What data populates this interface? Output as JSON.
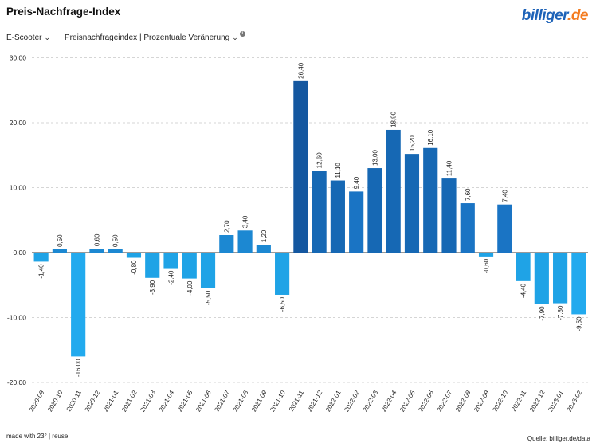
{
  "header": {
    "title": "Preis-Nachfrage-Index",
    "logo_main": "billiger",
    "logo_dot": ".",
    "logo_tld": "de"
  },
  "controls": {
    "product": "E-Scooter",
    "metric": "Preisnachfrageindex | Prozentuale Veränerung",
    "info_glyph": "i"
  },
  "footer": {
    "made_with": "made with 23° | reuse",
    "source": "Quelle: billiger.de/data"
  },
  "colors": {
    "bar_dark": "#1457a0",
    "bar_mid": "#1a74c4",
    "bar_light": "#1fa3e6",
    "bar_lightest": "#22aaee",
    "logo_blue": "#1e63b8",
    "logo_orange": "#f47c20"
  },
  "chart_data": {
    "type": "bar",
    "categories": [
      "2020-09",
      "2020-10",
      "2020-11",
      "2020-12",
      "2021-01",
      "2021-02",
      "2021-03",
      "2021-04",
      "2021-05",
      "2021-06",
      "2021-07",
      "2021-08",
      "2021-09",
      "2021-10",
      "2021-11",
      "2021-12",
      "2022-01",
      "2022-02",
      "2022-03",
      "2022-04",
      "2022-05",
      "2022-06",
      "2022-07",
      "2022-08",
      "2022-09",
      "2022-10",
      "2022-11",
      "2022-12",
      "2023-01",
      "2023-02"
    ],
    "values": [
      -1.4,
      0.5,
      -16.0,
      0.6,
      0.5,
      -0.8,
      -3.9,
      -2.4,
      -4.0,
      -5.5,
      2.7,
      3.4,
      1.2,
      -6.5,
      26.4,
      12.6,
      11.1,
      9.4,
      13.0,
      18.9,
      15.2,
      16.1,
      11.4,
      7.6,
      -0.6,
      7.4,
      -4.4,
      -7.9,
      -7.8,
      -9.5
    ],
    "value_labels": [
      "-1,40",
      "0,50",
      "-16,00",
      "0,60",
      "0,50",
      "-0,80",
      "-3,90",
      "-2,40",
      "-4,00",
      "-5,50",
      "2,70",
      "3,40",
      "1,20",
      "-6,50",
      "26,40",
      "12,60",
      "11,10",
      "9,40",
      "13,00",
      "18,90",
      "15,20",
      "16,10",
      "11,40",
      "7,60",
      "-0,60",
      "7,40",
      "-4,40",
      "-7,90",
      "-7,80",
      "-9,50"
    ],
    "yticks": [
      30,
      20,
      10,
      0,
      -10,
      -20
    ],
    "ytick_labels": [
      "30,00",
      "20,00",
      "10,00",
      "0,00",
      "-10,00",
      "-20,00"
    ],
    "ylim": [
      -21,
      30
    ],
    "grid": true,
    "legend": "none"
  }
}
